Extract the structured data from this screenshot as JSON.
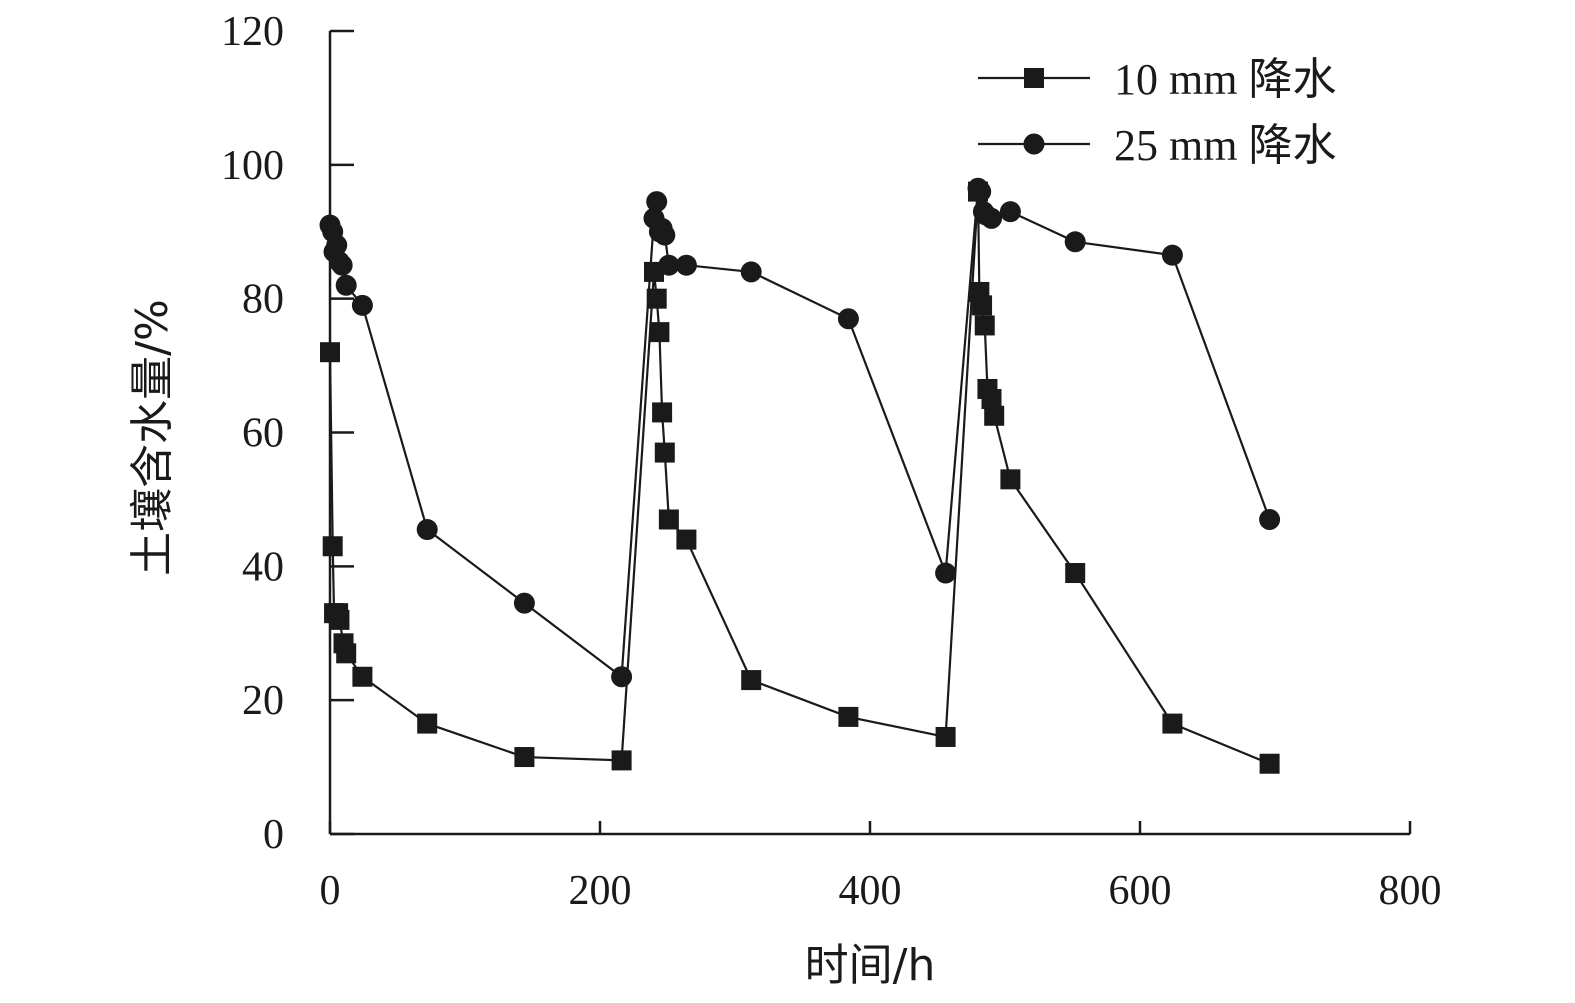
{
  "chart_data": {
    "type": "line",
    "xlabel": "时间/h",
    "ylabel": "土壤含水量/%",
    "xlim": [
      0,
      800
    ],
    "ylim": [
      0,
      120
    ],
    "xticks": [
      0,
      200,
      400,
      600,
      800
    ],
    "yticks": [
      0,
      20,
      40,
      60,
      80,
      100,
      120
    ],
    "legend_position": "top-right",
    "grid": false,
    "series": [
      {
        "name": "10 mm 降水",
        "marker": "square",
        "color": "#1a1a1a",
        "x": [
          0,
          2,
          3,
          6,
          7,
          10,
          12,
          24,
          72,
          144,
          216,
          240,
          242,
          244,
          246,
          248,
          251,
          264,
          312,
          384,
          456,
          480,
          481,
          483,
          485,
          487,
          490,
          492,
          504,
          552,
          624,
          696
        ],
        "y": [
          72,
          43,
          33,
          33,
          32,
          28.5,
          27,
          23.5,
          16.5,
          11.5,
          11,
          84,
          80,
          75,
          63,
          57,
          47,
          44,
          23,
          17.5,
          14.5,
          96,
          81,
          79,
          76,
          66.5,
          65,
          62.5,
          53,
          39,
          16.5,
          10.5
        ]
      },
      {
        "name": "25 mm 降水",
        "marker": "circle",
        "color": "#1a1a1a",
        "x": [
          0,
          2,
          3,
          5,
          7,
          9,
          12,
          24,
          72,
          144,
          216,
          240,
          242,
          244,
          246,
          248,
          251,
          264,
          312,
          384,
          456,
          480,
          482,
          484,
          486,
          490,
          504,
          552,
          624,
          696
        ],
        "y": [
          91,
          90,
          87,
          88,
          85.5,
          85,
          82,
          79,
          45.5,
          34.5,
          23.5,
          92,
          94.5,
          90,
          90.5,
          89.5,
          85,
          85,
          84,
          77,
          39,
          96.5,
          96,
          93,
          92.5,
          92,
          93,
          88.5,
          86.5,
          47
        ]
      }
    ]
  }
}
